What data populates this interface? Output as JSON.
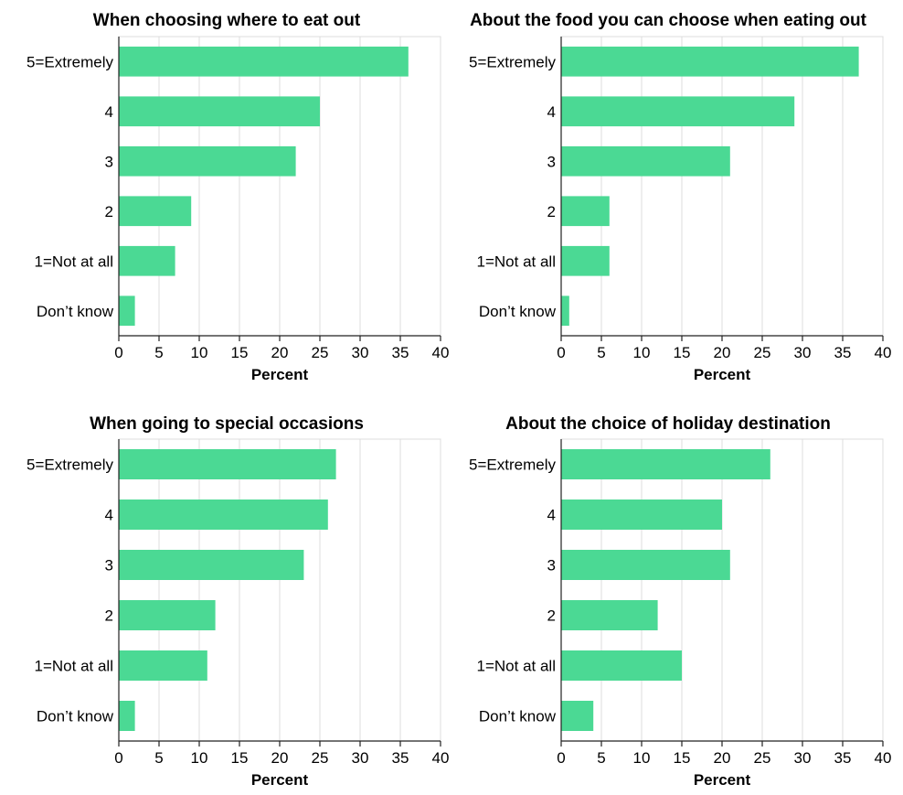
{
  "colors": {
    "bar": "#4bd994"
  },
  "chart_data": [
    {
      "type": "bar",
      "orientation": "horizontal",
      "title": "When choosing where to eat out",
      "categories": [
        "5=Extremely",
        "4",
        "3",
        "2",
        "1=Not at all",
        "Don’t know"
      ],
      "values": [
        36,
        25,
        22,
        9,
        7,
        2
      ],
      "xlabel": "Percent",
      "ylabel": "",
      "xlim": [
        0,
        40
      ],
      "xticks": [
        "0",
        "5",
        "10",
        "15",
        "20",
        "25",
        "30",
        "35",
        "40"
      ],
      "grid": true
    },
    {
      "type": "bar",
      "orientation": "horizontal",
      "title": "About the food you can choose when eating out",
      "categories": [
        "5=Extremely",
        "4",
        "3",
        "2",
        "1=Not at all",
        "Don’t know"
      ],
      "values": [
        37,
        29,
        21,
        6,
        6,
        1
      ],
      "xlabel": "Percent",
      "ylabel": "",
      "xlim": [
        0,
        40
      ],
      "xticks": [
        "0",
        "5",
        "10",
        "15",
        "20",
        "25",
        "30",
        "35",
        "40"
      ],
      "grid": true
    },
    {
      "type": "bar",
      "orientation": "horizontal",
      "title": "When going to special occasions",
      "categories": [
        "5=Extremely",
        "4",
        "3",
        "2",
        "1=Not at all",
        "Don’t know"
      ],
      "values": [
        27,
        26,
        23,
        12,
        11,
        2
      ],
      "xlabel": "Percent",
      "ylabel": "",
      "xlim": [
        0,
        40
      ],
      "xticks": [
        "0",
        "5",
        "10",
        "15",
        "20",
        "25",
        "30",
        "35",
        "40"
      ],
      "grid": true
    },
    {
      "type": "bar",
      "orientation": "horizontal",
      "title": "About the choice of holiday destination",
      "categories": [
        "5=Extremely",
        "4",
        "3",
        "2",
        "1=Not at all",
        "Don’t know"
      ],
      "values": [
        26,
        20,
        21,
        12,
        15,
        4
      ],
      "xlabel": "Percent",
      "ylabel": "",
      "xlim": [
        0,
        40
      ],
      "xticks": [
        "0",
        "5",
        "10",
        "15",
        "20",
        "25",
        "30",
        "35",
        "40"
      ],
      "grid": true
    }
  ]
}
